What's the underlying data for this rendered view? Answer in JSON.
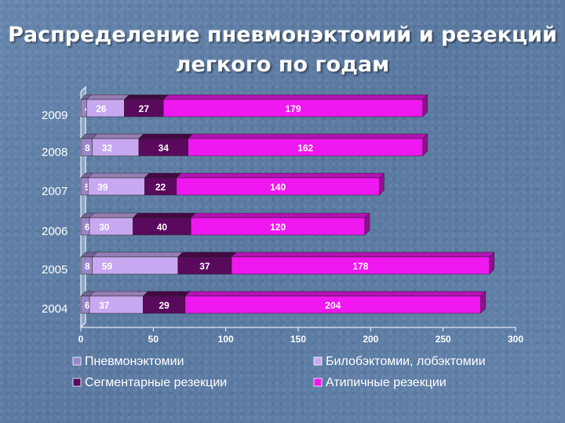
{
  "title": {
    "line1": "Распределение пневмонэктомий и резекций",
    "line2": "легкого по годам"
  },
  "chart_data": {
    "type": "bar",
    "orientation": "horizontal",
    "stacked": true,
    "categories": [
      "2009",
      "2008",
      "2007",
      "2006",
      "2005",
      "2004"
    ],
    "series": [
      {
        "name": "Пневмонэктомии",
        "color": "#9a86c8",
        "values": [
          4,
          8,
          5,
          6,
          8,
          6
        ]
      },
      {
        "name": "Билобэктомии, лобэктомии",
        "color": "#c8a8f0",
        "values": [
          26,
          32,
          39,
          30,
          59,
          37
        ]
      },
      {
        "name": "Сегментарные резекции",
        "color": "#5a0a5c",
        "values": [
          27,
          34,
          22,
          40,
          37,
          29
        ]
      },
      {
        "name": "Атипичные резекции",
        "color": "#f018f0",
        "values": [
          179,
          162,
          140,
          120,
          178,
          204
        ]
      }
    ],
    "xticks": [
      "0",
      "50",
      "100",
      "150",
      "200",
      "250",
      "300"
    ],
    "xlim": [
      0,
      300
    ],
    "grid": false,
    "legend_position": "bottom"
  }
}
